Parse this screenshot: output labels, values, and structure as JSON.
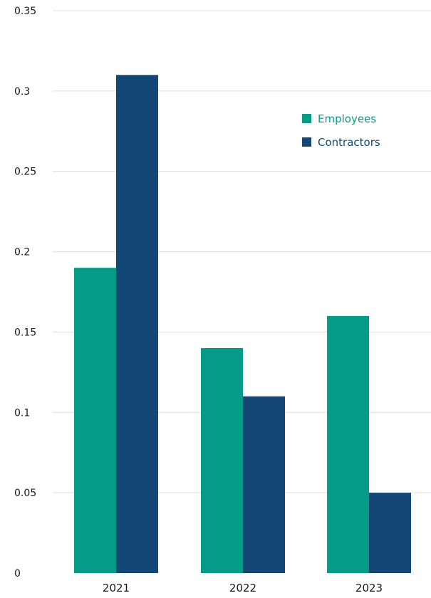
{
  "chart_data": {
    "type": "bar",
    "categories": [
      "2021",
      "2022",
      "2023"
    ],
    "series": [
      {
        "name": "Employees",
        "values": [
          0.19,
          0.14,
          0.16
        ],
        "color": "#069b87"
      },
      {
        "name": "Contractors",
        "values": [
          0.31,
          0.11,
          0.05
        ],
        "color": "#134876"
      }
    ],
    "y_ticks": [
      "0",
      "0.05",
      "0.1",
      "0.15",
      "0.2",
      "0.25",
      "0.3",
      "0.35"
    ],
    "ylim": [
      0,
      0.35
    ],
    "grid": true,
    "legend_position": "top-right"
  }
}
